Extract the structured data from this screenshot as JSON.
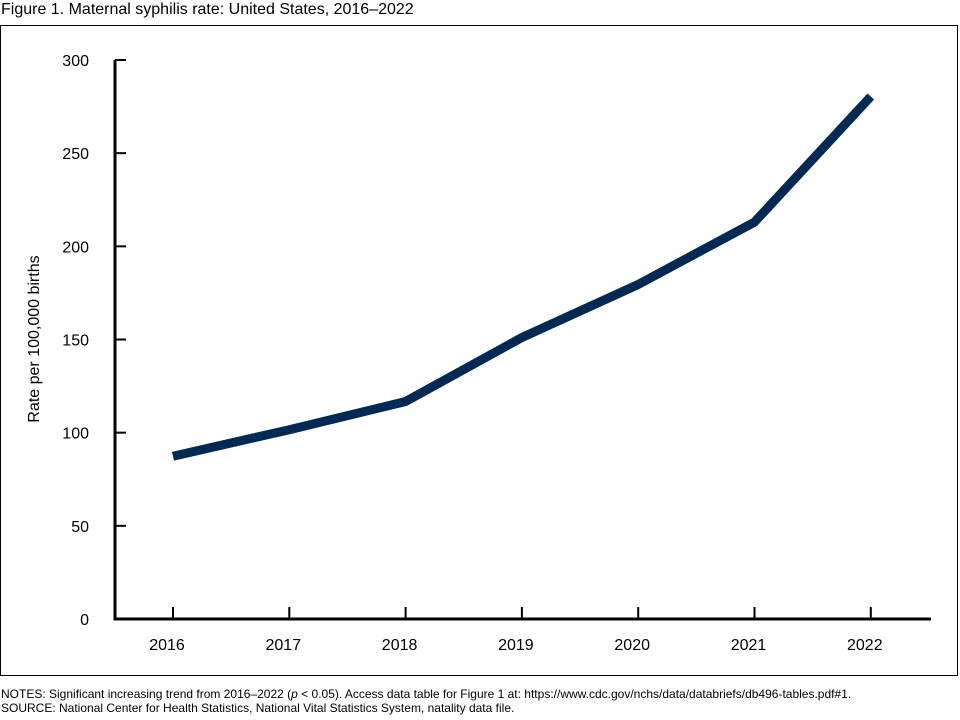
{
  "figure": {
    "title": "Figure 1. Maternal syphilis rate: United States, 2016–2022"
  },
  "notes": {
    "line1_prefix": "NOTES: Significant increasing trend from 2016–2022 (",
    "line1_p": "p",
    "line1_suffix": " < 0.05). Access data table for Figure 1 at: https://www.cdc.gov/nchs/data/databriefs/db496-tables.pdf#1.",
    "line2": "SOURCE: National Center for Health Statistics, National Vital Statistics System, natality data file."
  },
  "chart_data": {
    "type": "line",
    "title": "",
    "xlabel": "",
    "ylabel": "Rate per 100,000 births",
    "x": [
      "2016",
      "2017",
      "2018",
      "2019",
      "2020",
      "2021",
      "2022"
    ],
    "series": [
      {
        "values": [
          87.3,
          101.6,
          116.7,
          151.1,
          179.5,
          213.0,
          280.4
        ]
      }
    ],
    "ylim": [
      0,
      300
    ],
    "yticks": [
      0,
      50,
      100,
      150,
      200,
      250,
      300
    ],
    "grid": false,
    "line_color": "#002a54"
  }
}
